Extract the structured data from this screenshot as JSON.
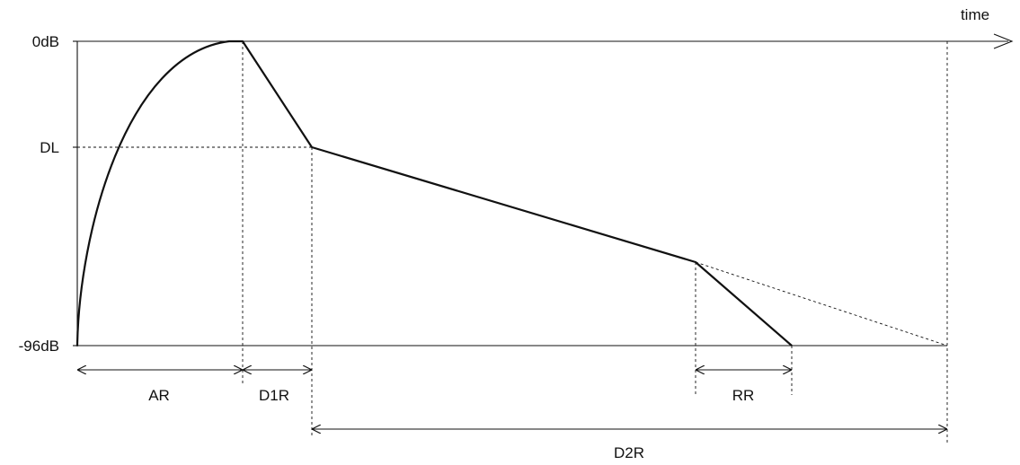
{
  "axis": {
    "time_label": "time",
    "y_top_label": "0dB",
    "y_mid_label": "DL",
    "y_bottom_label": "-96dB"
  },
  "dimensions": {
    "ar": "AR",
    "d1r": "D1R",
    "rr": "RR",
    "d2r": "D2R"
  }
}
